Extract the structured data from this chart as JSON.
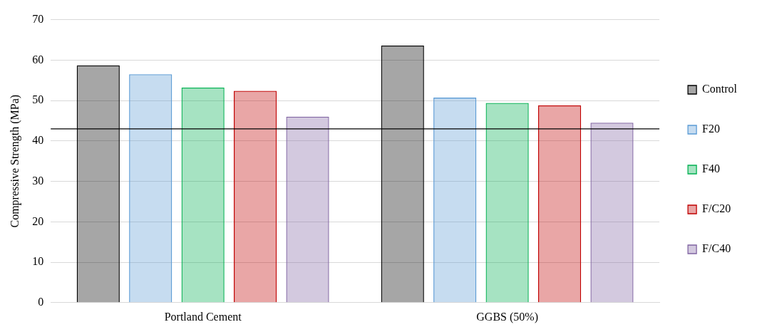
{
  "chart_data": {
    "type": "bar",
    "ylabel": "Compressive Strength (MPa)",
    "categories": [
      "Portland Cement",
      "GGBS (50%)"
    ],
    "series": [
      {
        "name": "Control",
        "color": "#000000",
        "values": [
          58.7,
          63.6
        ]
      },
      {
        "name": "F20",
        "color": "#5b9bd5",
        "values": [
          56.5,
          50.7
        ]
      },
      {
        "name": "F40",
        "color": "#00b050",
        "values": [
          53.2,
          49.4
        ]
      },
      {
        "name": "F/C20",
        "color": "#c00000",
        "values": [
          52.4,
          48.8
        ]
      },
      {
        "name": "F/C40",
        "color": "#8064a2",
        "values": [
          46.0,
          44.5
        ]
      }
    ],
    "ylim": [
      0,
      70
    ],
    "yticks": [
      0,
      10,
      20,
      30,
      40,
      50,
      60,
      70
    ],
    "grid": "y",
    "legend": "right",
    "ref_lines": [
      {
        "axis": "y",
        "value": 43,
        "color": "#000000"
      }
    ]
  }
}
